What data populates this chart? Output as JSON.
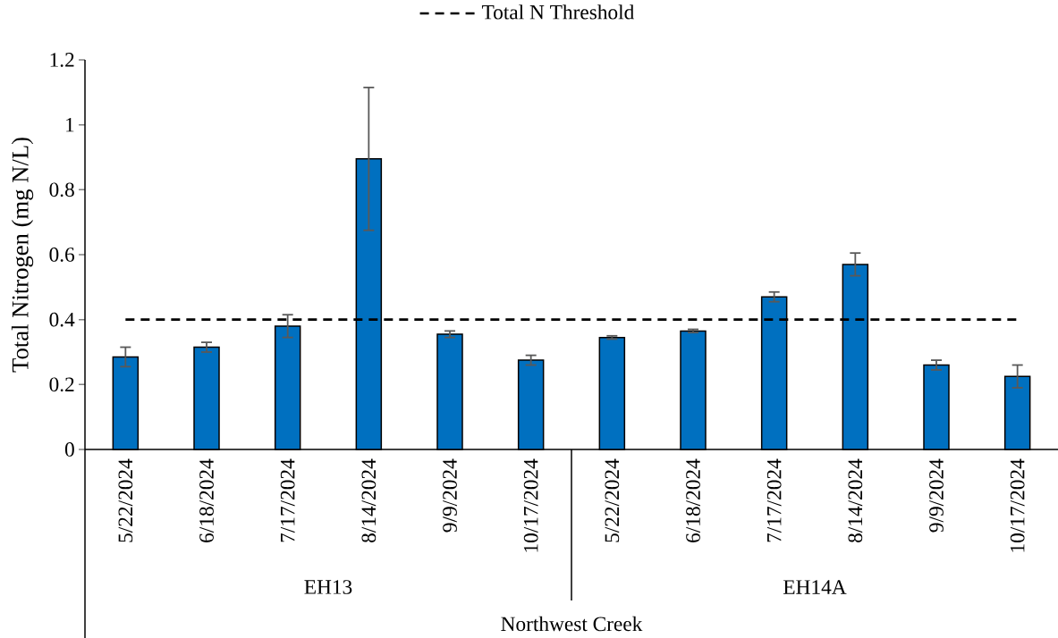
{
  "chart_data": {
    "type": "bar",
    "categories": [
      "5/22/2024",
      "6/18/2024",
      "7/17/2024",
      "8/14/2024",
      "9/9/2024",
      "10/17/2024",
      "5/22/2024",
      "6/18/2024",
      "7/17/2024",
      "8/14/2024",
      "9/9/2024",
      "10/17/2024"
    ],
    "values": [
      0.285,
      0.315,
      0.38,
      0.895,
      0.355,
      0.275,
      0.345,
      0.365,
      0.47,
      0.57,
      0.26,
      0.225
    ],
    "errors": [
      0.03,
      0.015,
      0.035,
      0.22,
      0.01,
      0.015,
      0.005,
      0.005,
      0.015,
      0.035,
      0.015,
      0.035
    ],
    "color": "#0070c0",
    "ylabel": "Total Nitrogen (mg N/L)",
    "xlabel": "Northwest Creek",
    "annotations": [
      "EH13",
      "EH14A"
    ],
    "ylim": [
      0,
      1.2
    ],
    "yticks": [
      0,
      0.2,
      0.4,
      0.6,
      0.8,
      1,
      1.2
    ],
    "ref_lines": [
      {
        "axis": "y",
        "value": 0.4,
        "label": "Total N Threshold",
        "color": "#000000",
        "line_style": "dashed"
      }
    ],
    "legend": "top"
  }
}
